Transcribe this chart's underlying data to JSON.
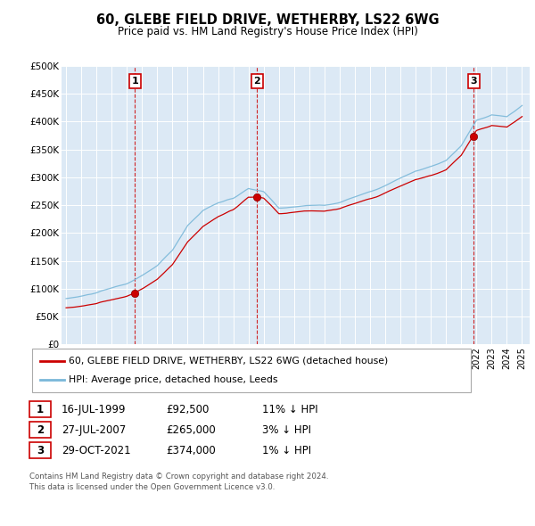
{
  "title": "60, GLEBE FIELD DRIVE, WETHERBY, LS22 6WG",
  "subtitle": "Price paid vs. HM Land Registry's House Price Index (HPI)",
  "plot_bg_color": "#dce9f5",
  "ylim": [
    0,
    500000
  ],
  "yticks": [
    0,
    50000,
    100000,
    150000,
    200000,
    250000,
    300000,
    350000,
    400000,
    450000,
    500000
  ],
  "ytick_labels": [
    "£0",
    "£50K",
    "£100K",
    "£150K",
    "£200K",
    "£250K",
    "£300K",
    "£350K",
    "£400K",
    "£450K",
    "£500K"
  ],
  "hpi_color": "#7ab8d9",
  "price_color": "#cc0000",
  "vline_color": "#cc0000",
  "annotation_box_color": "#cc0000",
  "legend_line1": "60, GLEBE FIELD DRIVE, WETHERBY, LS22 6WG (detached house)",
  "legend_line2": "HPI: Average price, detached house, Leeds",
  "sale1_date": "16-JUL-1999",
  "sale1_price": 92500,
  "sale1_year": 1999.54,
  "sale1_hpi": "11%",
  "sale2_date": "27-JUL-2007",
  "sale2_price": 265000,
  "sale2_year": 2007.57,
  "sale2_hpi": "3%",
  "sale3_date": "29-OCT-2021",
  "sale3_price": 374000,
  "sale3_year": 2021.83,
  "sale3_hpi": "1%",
  "footer1": "Contains HM Land Registry data © Crown copyright and database right 2024.",
  "footer2": "This data is licensed under the Open Government Licence v3.0.",
  "xlim_start": 1994.7,
  "xlim_end": 2025.5
}
